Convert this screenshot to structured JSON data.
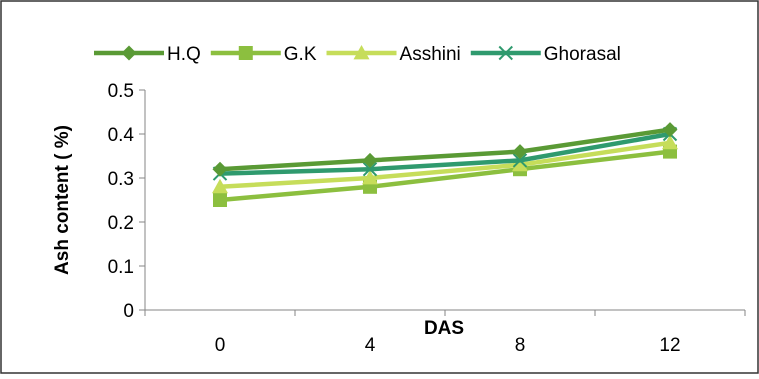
{
  "chart_data": {
    "type": "line",
    "title": "",
    "xlabel": "DAS",
    "ylabel": "Ash  content ( %)",
    "categories": [
      "0",
      "4",
      "8",
      "12"
    ],
    "ylim": [
      0,
      0.5
    ],
    "yticks": [
      "0",
      "0.1",
      "0.2",
      "0.3",
      "0.4",
      "0.5"
    ],
    "grid": false,
    "legend_position": "top",
    "series": [
      {
        "name": "H.Q",
        "values": [
          0.32,
          0.34,
          0.36,
          0.41
        ],
        "color": "#5a9a35",
        "marker": "diamond"
      },
      {
        "name": "G.K",
        "values": [
          0.25,
          0.28,
          0.32,
          0.36
        ],
        "color": "#8cbf3f",
        "marker": "square"
      },
      {
        "name": "Asshini",
        "values": [
          0.28,
          0.3,
          0.33,
          0.38
        ],
        "color": "#c6dd5a",
        "marker": "triangle"
      },
      {
        "name": "Ghorasal",
        "values": [
          0.31,
          0.32,
          0.34,
          0.4
        ],
        "color": "#2f9a6e",
        "marker": "x"
      }
    ]
  }
}
